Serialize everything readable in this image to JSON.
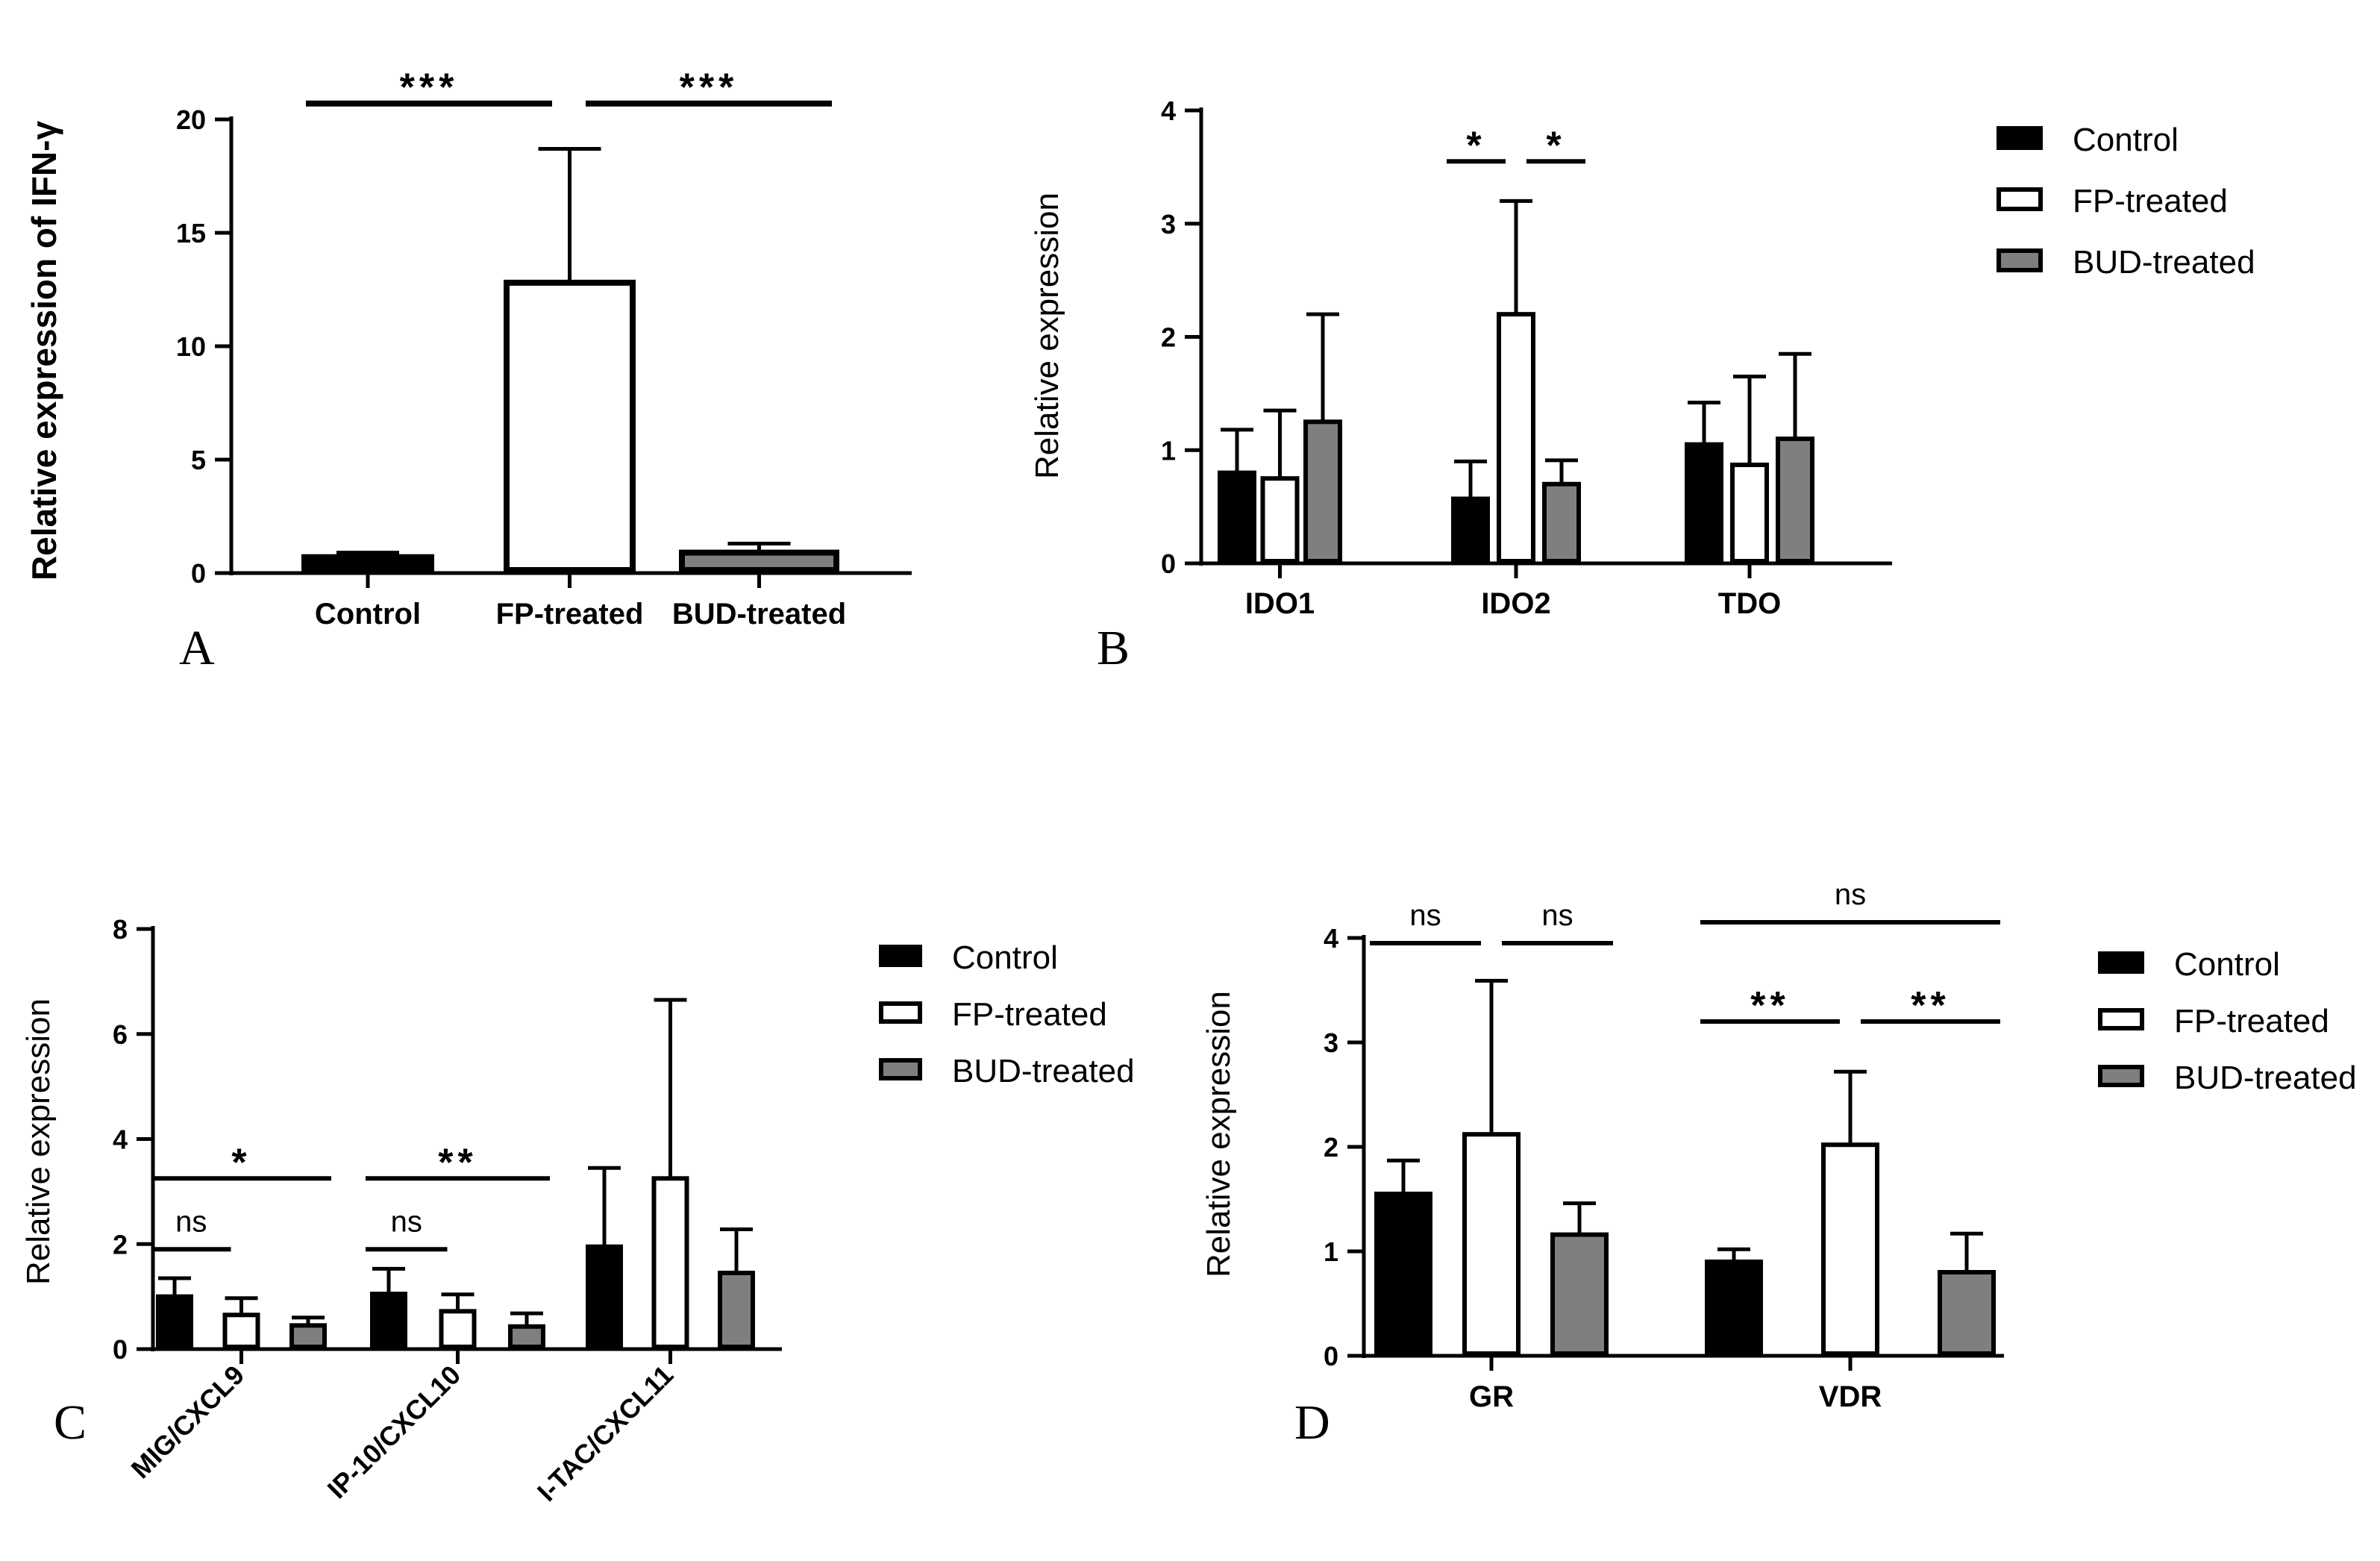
{
  "colors": {
    "control": "#000000",
    "fp_treated": "#ffffff",
    "bud_treated": "#7f7f7f",
    "stroke": "#000000"
  },
  "chart_data": [
    {
      "panel": "A",
      "type": "bar",
      "ylabel": "Relative expression of IFN-γ",
      "yticks": [
        0,
        5,
        10,
        15,
        20
      ],
      "ylim": [
        0,
        20
      ],
      "categories": [
        "Control",
        "FP-treated",
        "BUD-treated"
      ],
      "series": [
        {
          "name": "Relative expression of IFN-γ",
          "values": [
            0.7,
            12.8,
            0.9
          ],
          "errors": [
            0.2,
            5.9,
            0.4
          ]
        }
      ],
      "significance": [
        {
          "label": "***",
          "from": 0,
          "to": 1,
          "y": 20.7
        },
        {
          "label": "***",
          "from": 1,
          "to": 2,
          "y": 20.7
        }
      ]
    },
    {
      "panel": "B",
      "type": "bar",
      "ylabel": "Relative expression",
      "yticks": [
        0,
        1,
        2,
        3,
        4
      ],
      "ylim": [
        0,
        4
      ],
      "categories": [
        "IDO1",
        "IDO2",
        "TDO"
      ],
      "series": [
        {
          "name": "Control",
          "values": [
            0.8,
            0.57,
            1.05
          ],
          "errors": [
            0.38,
            0.33,
            0.37
          ]
        },
        {
          "name": "FP-treated",
          "values": [
            0.75,
            2.2,
            0.87
          ],
          "errors": [
            0.6,
            1.0,
            0.78
          ]
        },
        {
          "name": "BUD-treated",
          "values": [
            1.25,
            0.7,
            1.1
          ],
          "errors": [
            0.95,
            0.21,
            0.75
          ]
        }
      ],
      "significance": [
        {
          "label": "*",
          "from": [
            1,
            0
          ],
          "to": [
            1,
            1
          ],
          "y": 3.55
        },
        {
          "label": "*",
          "from": [
            1,
            1
          ],
          "to": [
            1,
            2
          ],
          "y": 3.55
        }
      ],
      "legend": "right"
    },
    {
      "panel": "C",
      "type": "bar",
      "ylabel": "Relative expression",
      "yticks": [
        0,
        2,
        4,
        6,
        8
      ],
      "ylim": [
        0,
        8
      ],
      "categories": [
        "MIG/CXCL9",
        "IP-10/CXCL10",
        "I-TAC/CXCL11"
      ],
      "series": [
        {
          "name": "Control",
          "values": [
            1.0,
            1.05,
            1.95
          ],
          "errors": [
            0.35,
            0.48,
            1.5
          ]
        },
        {
          "name": "FP-treated",
          "values": [
            0.65,
            0.72,
            3.25
          ],
          "errors": [
            0.32,
            0.32,
            3.4
          ]
        },
        {
          "name": "BUD-treated",
          "values": [
            0.45,
            0.43,
            1.45
          ],
          "errors": [
            0.15,
            0.25,
            0.83
          ]
        }
      ],
      "significance": [
        {
          "label": "*",
          "from": [
            0,
            0
          ],
          "to": [
            0,
            2
          ],
          "y": 3.25
        },
        {
          "label": "ns",
          "from": [
            0,
            0
          ],
          "to": [
            0,
            1
          ],
          "y": 1.9
        },
        {
          "label": "**",
          "from": [
            1,
            0
          ],
          "to": [
            1,
            2
          ],
          "y": 3.25
        },
        {
          "label": "ns",
          "from": [
            1,
            0
          ],
          "to": [
            1,
            1
          ],
          "y": 1.9
        }
      ],
      "legend": "right"
    },
    {
      "panel": "D",
      "type": "bar",
      "ylabel": "Relative expression",
      "yticks": [
        0,
        1,
        2,
        3,
        4
      ],
      "ylim": [
        0,
        4
      ],
      "categories": [
        "GR",
        "VDR"
      ],
      "series": [
        {
          "name": "Control",
          "values": [
            1.55,
            0.9
          ],
          "errors": [
            0.32,
            0.12
          ]
        },
        {
          "name": "FP-treated",
          "values": [
            2.12,
            2.02
          ],
          "errors": [
            1.47,
            0.7
          ]
        },
        {
          "name": "BUD-treated",
          "values": [
            1.16,
            0.8
          ],
          "errors": [
            0.3,
            0.37
          ]
        }
      ],
      "significance": [
        {
          "label": "ns",
          "from": [
            0,
            0
          ],
          "to": [
            0,
            1
          ],
          "y": 3.95
        },
        {
          "label": "ns",
          "from": [
            0,
            1
          ],
          "to": [
            0,
            2
          ],
          "y": 3.95
        },
        {
          "label": "ns",
          "from": [
            1,
            0
          ],
          "to": [
            1,
            2
          ],
          "y": 4.15
        },
        {
          "label": "**",
          "from": [
            1,
            0
          ],
          "to": [
            1,
            1
          ],
          "y": 3.2
        },
        {
          "label": "**",
          "from": [
            1,
            1
          ],
          "to": [
            1,
            2
          ],
          "y": 3.2
        }
      ],
      "legend": "right"
    }
  ]
}
